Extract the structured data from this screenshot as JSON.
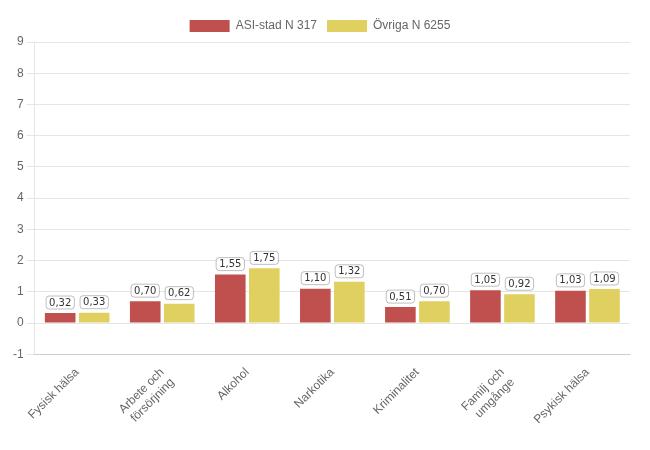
{
  "chart_data": {
    "type": "bar",
    "categories": [
      "Fysisk hälsa",
      "Arbete och\nförsörjning",
      "Alkohol",
      "Narkotika",
      "Kriminalitet",
      "Familj och\numgånge",
      "Psykisk hälsa"
    ],
    "series": [
      {
        "name": "ASI-stad N 317",
        "color": "#c0504d",
        "values": [
          0.32,
          0.7,
          1.55,
          1.1,
          0.51,
          1.05,
          1.03
        ],
        "value_labels": [
          "0,32",
          "0,70",
          "1,55",
          "1,10",
          "0,51",
          "1,05",
          "1,03"
        ]
      },
      {
        "name": "Övriga N 6255",
        "color": "#e0d060",
        "values": [
          0.33,
          0.62,
          1.75,
          1.32,
          0.7,
          0.92,
          1.09
        ],
        "value_labels": [
          "0,33",
          "0,62",
          "1,75",
          "1,32",
          "0,70",
          "0,92",
          "1,09"
        ]
      }
    ],
    "ylim": [
      -1,
      9
    ],
    "yticks": [
      -1,
      0,
      1,
      2,
      3,
      4,
      5,
      6,
      7,
      8,
      9
    ],
    "grid": true,
    "legend": "top",
    "data_labels": true
  }
}
